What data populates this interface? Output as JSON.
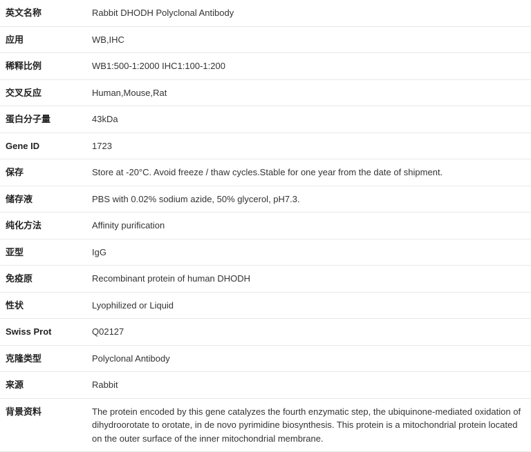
{
  "rows": [
    {
      "label": "英文名称",
      "value": "Rabbit DHODH Polyclonal Antibody"
    },
    {
      "label": "应用",
      "value": "WB,IHC"
    },
    {
      "label": "稀释比例",
      "value": "WB1:500-1:2000 IHC1:100-1:200"
    },
    {
      "label": "交叉反应",
      "value": "Human,Mouse,Rat"
    },
    {
      "label": "蛋白分子量",
      "value": "43kDa"
    },
    {
      "label": "Gene ID",
      "value": "1723"
    },
    {
      "label": "保存",
      "value": "Store at -20°C. Avoid freeze / thaw cycles.Stable for one year from the date of shipment."
    },
    {
      "label": "储存液",
      "value": "PBS with 0.02% sodium azide, 50% glycerol, pH7.3."
    },
    {
      "label": "纯化方法",
      "value": "Affinity purification"
    },
    {
      "label": "亚型",
      "value": "IgG"
    },
    {
      "label": "免疫原",
      "value": "Recombinant protein of human DHODH"
    },
    {
      "label": "性状",
      "value": "Lyophilized or Liquid"
    },
    {
      "label": "Swiss Prot",
      "value": "Q02127"
    },
    {
      "label": "克隆类型",
      "value": "Polyclonal Antibody"
    },
    {
      "label": "来源",
      "value": "Rabbit"
    },
    {
      "label": "背景资料",
      "value": "The protein encoded by this gene catalyzes the fourth enzymatic step, the ubiquinone-mediated oxidation of dihydroorotate to orotate, in de novo pyrimidine biosynthesis. This protein is a mitochondrial protein located on the outer surface of the inner mitochondrial membrane."
    }
  ]
}
